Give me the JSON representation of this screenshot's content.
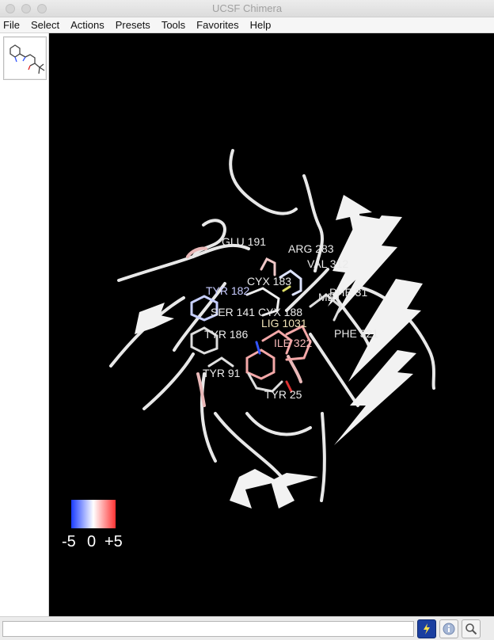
{
  "window": {
    "title": "UCSF Chimera"
  },
  "menu": {
    "items": [
      {
        "label": "File"
      },
      {
        "label": "Select"
      },
      {
        "label": "Actions"
      },
      {
        "label": "Presets"
      },
      {
        "label": "Tools"
      },
      {
        "label": "Favorites"
      },
      {
        "label": "Help"
      }
    ]
  },
  "viewer": {
    "residue_labels": [
      "GLU 191",
      "ARG 283",
      "VAL 312",
      "CYX 183",
      "TYR 182",
      "SER 141",
      "CYX 188",
      "LIG 1031",
      "TYR 186",
      "ILE 322",
      "PHE 321",
      "TYR 91",
      "TYR 25",
      "MET",
      "PHE 31"
    ],
    "colorkey": {
      "min": "-5",
      "mid": "0",
      "max": "+5",
      "colors": [
        "#1a3cff",
        "#ffffff",
        "#ff3333"
      ]
    }
  },
  "statusbar": {
    "command_value": "",
    "buttons": [
      {
        "icon": "lightning-icon"
      },
      {
        "icon": "info-icon"
      },
      {
        "icon": "magnifier-icon"
      }
    ]
  }
}
